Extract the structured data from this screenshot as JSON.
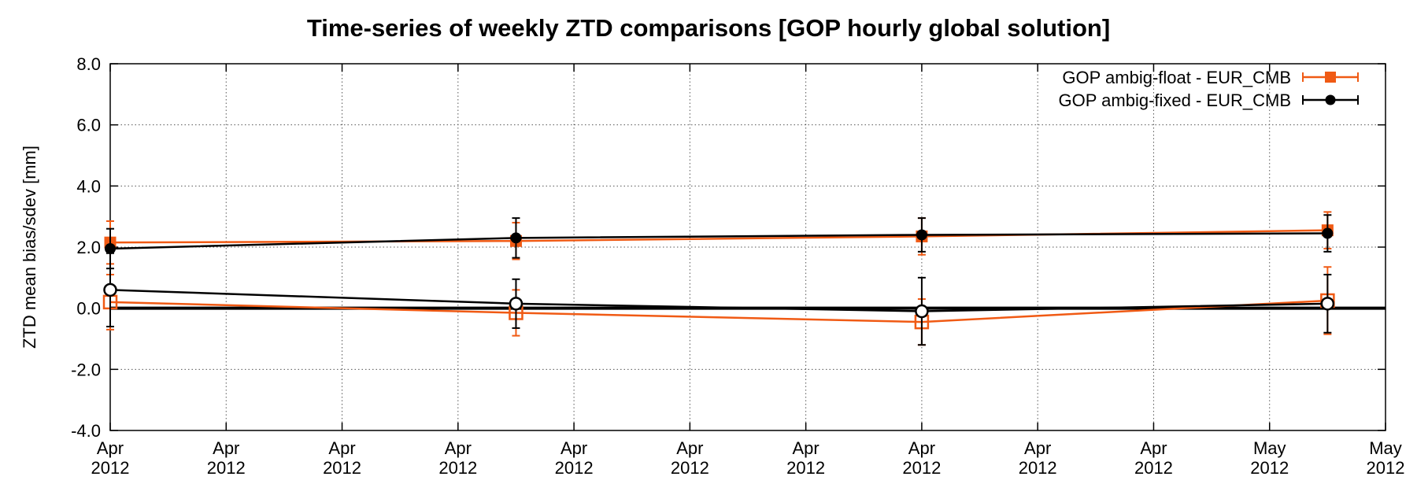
{
  "chart_data": {
    "type": "line",
    "title": "Time-series of weekly ZTD comparisons [GOP hourly global solution]",
    "xlabel": "",
    "ylabel": "ZTD mean bias/sdev [mm]",
    "ylim": [
      -4.0,
      8.0
    ],
    "xlim": [
      0,
      11
    ],
    "yticks": [
      "-4.0",
      "-2.0",
      "0.0",
      "2.0",
      "4.0",
      "6.0",
      "8.0"
    ],
    "xticks": [
      {
        "month": "Apr",
        "year": "2012"
      },
      {
        "month": "Apr",
        "year": "2012"
      },
      {
        "month": "Apr",
        "year": "2012"
      },
      {
        "month": "Apr",
        "year": "2012"
      },
      {
        "month": "Apr",
        "year": "2012"
      },
      {
        "month": "Apr",
        "year": "2012"
      },
      {
        "month": "Apr",
        "year": "2012"
      },
      {
        "month": "Apr",
        "year": "2012"
      },
      {
        "month": "Apr",
        "year": "2012"
      },
      {
        "month": "Apr",
        "year": "2012"
      },
      {
        "month": "May",
        "year": "2012"
      },
      {
        "month": "May",
        "year": "2012"
      }
    ],
    "grid": true,
    "legend_position": "top-right",
    "colors": {
      "float": "#f05a14",
      "fixed": "#000000"
    },
    "series": [
      {
        "name": "GOP ambig-float - EUR_CMB",
        "color": "#f05a14",
        "marker": "square",
        "sdev": {
          "x": [
            0.0,
            3.5,
            7.0,
            10.5
          ],
          "y": [
            2.15,
            2.2,
            2.35,
            2.55
          ],
          "err": [
            0.7,
            0.6,
            0.6,
            0.6
          ]
        },
        "bias": {
          "x": [
            0.0,
            3.5,
            7.0,
            10.5
          ],
          "y": [
            0.2,
            -0.15,
            -0.45,
            0.25
          ],
          "err": [
            0.9,
            0.75,
            0.75,
            1.1
          ]
        }
      },
      {
        "name": "GOP ambig-fixed - EUR_CMB",
        "color": "#000000",
        "marker": "circle",
        "sdev": {
          "x": [
            0.0,
            3.5,
            7.0,
            10.5
          ],
          "y": [
            1.95,
            2.3,
            2.4,
            2.45
          ],
          "err": [
            0.65,
            0.65,
            0.55,
            0.6
          ]
        },
        "bias": {
          "x": [
            0.0,
            3.5,
            7.0,
            10.5
          ],
          "y": [
            0.6,
            0.15,
            -0.1,
            0.15
          ],
          "err": [
            1.2,
            0.8,
            1.1,
            0.95
          ]
        }
      }
    ]
  }
}
